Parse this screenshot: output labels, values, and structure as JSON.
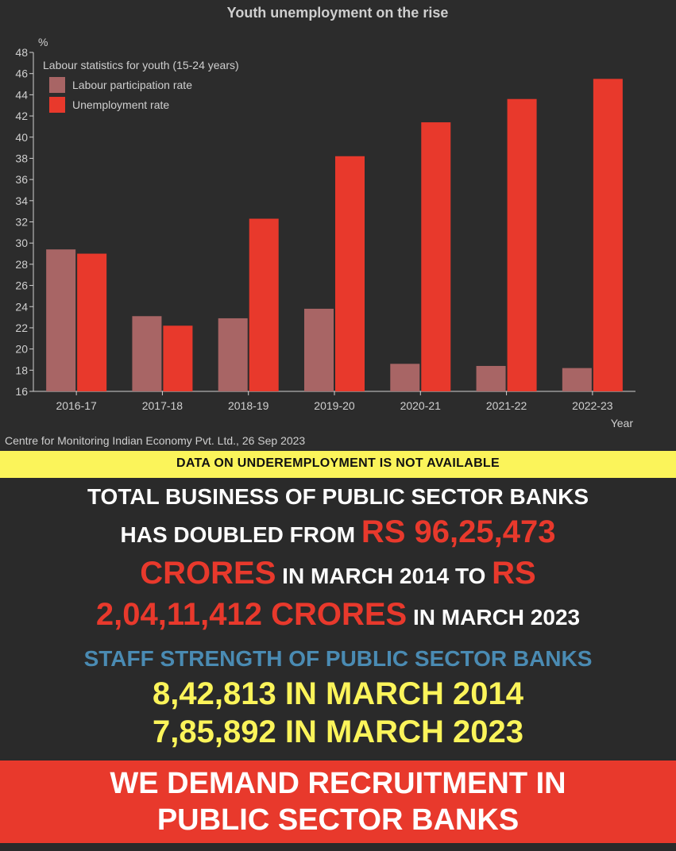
{
  "chart_data": {
    "type": "bar",
    "title": "Youth unemployment on the rise",
    "y_unit": "%",
    "xlabel": "Year",
    "legend_title": "Labour statistics for youth (15-24 years)",
    "legend_position": "top-left",
    "categories": [
      "2016-17",
      "2017-18",
      "2018-19",
      "2019-20",
      "2020-21",
      "2021-22",
      "2022-23"
    ],
    "series": [
      {
        "name": "Labour participation rate",
        "color": "#a86565",
        "values": [
          29.4,
          23.1,
          22.9,
          23.8,
          18.6,
          18.4,
          18.2
        ]
      },
      {
        "name": "Unemployment rate",
        "color": "#e8392c",
        "values": [
          29.0,
          22.2,
          32.3,
          38.2,
          41.4,
          43.6,
          45.5
        ]
      }
    ],
    "ylim": [
      16,
      48
    ],
    "yticks": [
      16,
      18,
      20,
      22,
      24,
      26,
      28,
      30,
      32,
      34,
      36,
      38,
      40,
      42,
      44,
      46,
      48
    ],
    "source": "Centre for Monitoring Indian Economy Pvt. Ltd., 26 Sep 2023",
    "grid": false
  },
  "notice": "DATA ON UNDEREMPLOYMENT IS NOT AVAILABLE",
  "business": {
    "line1": "TOTAL BUSINESS OF PUBLIC SECTOR BANKS",
    "line2_prefix": "HAS DOUBLED FROM ",
    "amount_2014": "RS 96,25,473",
    "crores_2014": "CRORES",
    "line3_mid": " IN MARCH 2014 TO ",
    "rs_label": "RS",
    "amount_2023": "2,04,11,412 CRORES",
    "line4_suffix": " IN MARCH 2023"
  },
  "staff": {
    "title": "STAFF STRENGTH OF PUBLIC SECTOR BANKS",
    "line_2014": "8,42,813 IN MARCH 2014",
    "line_2023": "7,85,892 IN MARCH 2023"
  },
  "demand": {
    "line1": "WE  DEMAND RECRUITMENT IN",
    "line2": "PUBLIC SECTOR BANKS"
  }
}
